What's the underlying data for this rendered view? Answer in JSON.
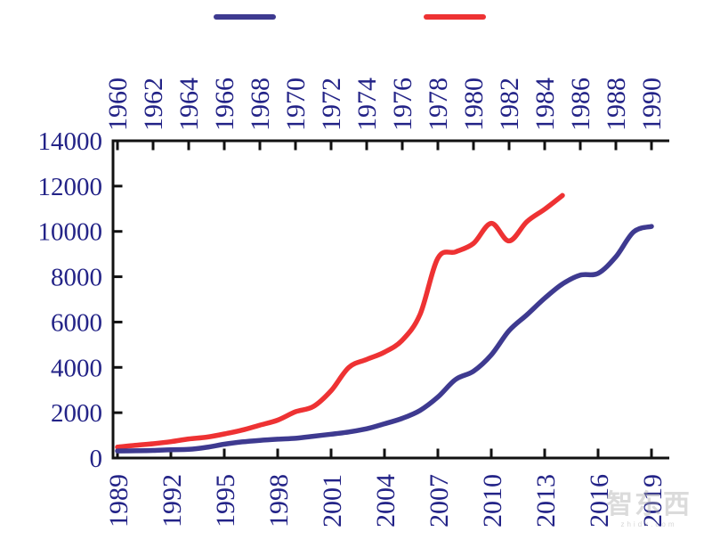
{
  "legend": {
    "items": [
      {
        "id": "blue-series",
        "color": "#3E3A90"
      },
      {
        "id": "red-series",
        "color": "#EE3233"
      }
    ]
  },
  "watermark": {
    "text": "智东西",
    "subtext": "zhidx.com"
  },
  "chart_data": {
    "type": "line",
    "title": "",
    "xlabel": "",
    "ylabel": "",
    "grid": false,
    "frame": "left-top-bottom-open-right",
    "axis_color": "#111111",
    "tick_label_color": "#232387",
    "y_axis": {
      "min": 0,
      "max": 14000,
      "tick_step": 2000,
      "ticks": [
        0,
        2000,
        4000,
        6000,
        8000,
        10000,
        12000,
        14000
      ]
    },
    "top_x_axis": {
      "range": [
        1960,
        1990
      ],
      "tick_step": 2,
      "ticks": [
        1960,
        1962,
        1964,
        1966,
        1968,
        1970,
        1972,
        1974,
        1976,
        1978,
        1980,
        1982,
        1984,
        1986,
        1988,
        1990
      ]
    },
    "bottom_x_axis": {
      "range": [
        1989,
        2019
      ],
      "tick_step": 3,
      "ticks": [
        1989,
        1992,
        1995,
        1998,
        2001,
        2004,
        2007,
        2010,
        2013,
        2016,
        2019
      ]
    },
    "series": [
      {
        "id": "red-series",
        "color": "#EE3233",
        "axis": "top",
        "x": [
          1960,
          1961,
          1962,
          1963,
          1964,
          1965,
          1966,
          1967,
          1968,
          1969,
          1970,
          1971,
          1972,
          1973,
          1974,
          1975,
          1976,
          1977,
          1978,
          1979,
          1980,
          1981,
          1982,
          1983,
          1984,
          1985
        ],
        "values": [
          480,
          560,
          630,
          720,
          840,
          920,
          1060,
          1230,
          1450,
          1670,
          2040,
          2270,
          2970,
          4000,
          4350,
          4670,
          5200,
          6340,
          8820,
          9100,
          9470,
          10360,
          9580,
          10430,
          10980,
          11590
        ]
      },
      {
        "id": "blue-series",
        "color": "#3E3A90",
        "axis": "bottom",
        "x": [
          1989,
          1990,
          1991,
          1992,
          1993,
          1994,
          1995,
          1996,
          1997,
          1998,
          1999,
          2000,
          2001,
          2002,
          2003,
          2004,
          2005,
          2006,
          2007,
          2008,
          2009,
          2010,
          2011,
          2012,
          2013,
          2014,
          2015,
          2016,
          2017,
          2018,
          2019
        ],
        "values": [
          310,
          320,
          335,
          365,
          380,
          470,
          610,
          710,
          780,
          830,
          870,
          960,
          1050,
          1150,
          1290,
          1510,
          1750,
          2100,
          2690,
          3470,
          3830,
          4550,
          5620,
          6320,
          7050,
          7680,
          8070,
          8150,
          8880,
          9980,
          10220
        ]
      }
    ]
  }
}
